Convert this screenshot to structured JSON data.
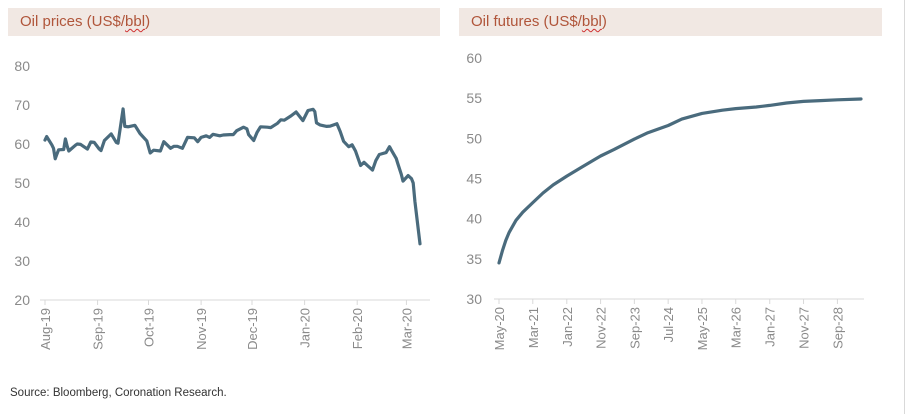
{
  "left_panel": {
    "title_prefix": "Oil prices (US$/",
    "title_unit": "bbl",
    "title_suffix": ")"
  },
  "right_panel": {
    "title_prefix": "Oil futures (US$/",
    "title_unit": "bbl",
    "title_suffix": ")"
  },
  "source": "Source: Bloomberg, Coronation Research.",
  "colors": {
    "line": "#4a6b7d",
    "header_bg": "#f1e8e3",
    "title": "#b0553a",
    "axis": "#d9d9d9",
    "tick": "#8a8a8a"
  },
  "chart_data": [
    {
      "type": "line",
      "title": "Oil prices (US$/bbl)",
      "ylim": [
        20,
        80
      ],
      "yticks": [
        20,
        30,
        40,
        50,
        60,
        70,
        80
      ],
      "x_tick_labels": [
        "Aug-19",
        "Sep-19",
        "Oct-19",
        "Nov-19",
        "Dec-19",
        "Jan-20",
        "Feb-20",
        "Mar-20"
      ],
      "x_tick_dates": [
        "2019-08-01",
        "2019-09-01",
        "2019-10-01",
        "2019-11-01",
        "2019-12-01",
        "2020-01-01",
        "2020-02-01",
        "2020-03-01"
      ],
      "x_range": [
        "2019-08-01",
        "2020-03-09"
      ],
      "grid": false,
      "series": [
        {
          "points": [
            [
              "2019-08-01",
              61.0
            ],
            [
              "2019-08-02",
              61.9
            ],
            [
              "2019-08-05",
              59.8
            ],
            [
              "2019-08-06",
              58.9
            ],
            [
              "2019-08-07",
              56.2
            ],
            [
              "2019-08-08",
              57.4
            ],
            [
              "2019-08-09",
              58.5
            ],
            [
              "2019-08-12",
              58.6
            ],
            [
              "2019-08-13",
              61.3
            ],
            [
              "2019-08-14",
              59.5
            ],
            [
              "2019-08-15",
              58.2
            ],
            [
              "2019-08-16",
              58.6
            ],
            [
              "2019-08-19",
              59.7
            ],
            [
              "2019-08-20",
              60.0
            ],
            [
              "2019-08-22",
              59.9
            ],
            [
              "2019-08-26",
              58.7
            ],
            [
              "2019-08-28",
              60.5
            ],
            [
              "2019-08-30",
              60.4
            ],
            [
              "2019-09-02",
              58.7
            ],
            [
              "2019-09-03",
              58.3
            ],
            [
              "2019-09-05",
              60.9
            ],
            [
              "2019-09-09",
              62.6
            ],
            [
              "2019-09-12",
              60.4
            ],
            [
              "2019-09-13",
              60.2
            ],
            [
              "2019-09-16",
              69.0
            ],
            [
              "2019-09-17",
              64.5
            ],
            [
              "2019-09-19",
              64.4
            ],
            [
              "2019-09-23",
              64.8
            ],
            [
              "2019-09-26",
              62.7
            ],
            [
              "2019-09-30",
              60.8
            ],
            [
              "2019-10-02",
              57.7
            ],
            [
              "2019-10-04",
              58.4
            ],
            [
              "2019-10-08",
              58.2
            ],
            [
              "2019-10-10",
              60.6
            ],
            [
              "2019-10-14",
              58.9
            ],
            [
              "2019-10-16",
              59.4
            ],
            [
              "2019-10-18",
              59.4
            ],
            [
              "2019-10-21",
              58.9
            ],
            [
              "2019-10-24",
              61.7
            ],
            [
              "2019-10-28",
              61.6
            ],
            [
              "2019-10-30",
              60.6
            ],
            [
              "2019-11-01",
              61.7
            ],
            [
              "2019-11-04",
              62.1
            ],
            [
              "2019-11-06",
              61.7
            ],
            [
              "2019-11-08",
              62.5
            ],
            [
              "2019-11-12",
              62.1
            ],
            [
              "2019-11-14",
              62.3
            ],
            [
              "2019-11-18",
              62.4
            ],
            [
              "2019-11-20",
              62.4
            ],
            [
              "2019-11-22",
              63.4
            ],
            [
              "2019-11-26",
              64.3
            ],
            [
              "2019-11-28",
              63.9
            ],
            [
              "2019-11-29",
              62.4
            ],
            [
              "2019-12-02",
              60.9
            ],
            [
              "2019-12-04",
              63.0
            ],
            [
              "2019-12-06",
              64.4
            ],
            [
              "2019-12-10",
              64.3
            ],
            [
              "2019-12-12",
              64.2
            ],
            [
              "2019-12-16",
              65.3
            ],
            [
              "2019-12-18",
              66.2
            ],
            [
              "2019-12-20",
              66.1
            ],
            [
              "2019-12-24",
              67.2
            ],
            [
              "2019-12-27",
              68.2
            ],
            [
              "2019-12-31",
              66.0
            ],
            [
              "2020-01-03",
              68.6
            ],
            [
              "2020-01-06",
              68.9
            ],
            [
              "2020-01-07",
              68.3
            ],
            [
              "2020-01-08",
              65.4
            ],
            [
              "2020-01-10",
              64.9
            ],
            [
              "2020-01-14",
              64.5
            ],
            [
              "2020-01-16",
              64.6
            ],
            [
              "2020-01-20",
              65.2
            ],
            [
              "2020-01-22",
              63.2
            ],
            [
              "2020-01-24",
              60.7
            ],
            [
              "2020-01-27",
              59.3
            ],
            [
              "2020-01-29",
              59.8
            ],
            [
              "2020-01-31",
              58.2
            ],
            [
              "2020-02-03",
              54.5
            ],
            [
              "2020-02-05",
              55.3
            ],
            [
              "2020-02-07",
              54.5
            ],
            [
              "2020-02-10",
              53.3
            ],
            [
              "2020-02-12",
              55.8
            ],
            [
              "2020-02-14",
              57.3
            ],
            [
              "2020-02-18",
              57.8
            ],
            [
              "2020-02-20",
              59.3
            ],
            [
              "2020-02-21",
              58.5
            ],
            [
              "2020-02-24",
              56.3
            ],
            [
              "2020-02-25",
              54.9
            ],
            [
              "2020-02-27",
              52.2
            ],
            [
              "2020-02-28",
              50.5
            ],
            [
              "2020-03-02",
              51.9
            ],
            [
              "2020-03-04",
              51.1
            ],
            [
              "2020-03-05",
              50.0
            ],
            [
              "2020-03-06",
              45.3
            ],
            [
              "2020-03-09",
              34.4
            ]
          ]
        }
      ]
    },
    {
      "type": "line",
      "title": "Oil futures (US$/bbl)",
      "ylim": [
        30,
        60
      ],
      "yticks": [
        30,
        35,
        40,
        45,
        50,
        55,
        60
      ],
      "x_tick_labels": [
        "May-20",
        "Mar-21",
        "Jan-22",
        "Nov-22",
        "Sep-23",
        "Jul-24",
        "May-25",
        "Mar-26",
        "Jan-27",
        "Nov-27",
        "Sep-28"
      ],
      "x_tick_dates": [
        "2020-05-01",
        "2021-03-01",
        "2022-01-01",
        "2022-11-01",
        "2023-09-01",
        "2024-07-01",
        "2025-05-01",
        "2026-03-01",
        "2027-01-01",
        "2027-11-01",
        "2028-09-01"
      ],
      "x_range": [
        "2020-05-01",
        "2029-04-01"
      ],
      "grid": false,
      "series": [
        {
          "points": [
            [
              "2020-05-01",
              34.5
            ],
            [
              "2020-06-01",
              36.0
            ],
            [
              "2020-07-01",
              37.3
            ],
            [
              "2020-08-01",
              38.3
            ],
            [
              "2020-10-01",
              39.8
            ],
            [
              "2020-12-01",
              40.8
            ],
            [
              "2021-03-01",
              42.0
            ],
            [
              "2021-06-01",
              43.2
            ],
            [
              "2021-09-01",
              44.2
            ],
            [
              "2022-01-01",
              45.3
            ],
            [
              "2022-05-01",
              46.3
            ],
            [
              "2022-09-01",
              47.3
            ],
            [
              "2022-11-01",
              47.8
            ],
            [
              "2023-03-01",
              48.6
            ],
            [
              "2023-09-01",
              49.9
            ],
            [
              "2024-01-01",
              50.7
            ],
            [
              "2024-07-01",
              51.6
            ],
            [
              "2024-11-01",
              52.4
            ],
            [
              "2025-05-01",
              53.1
            ],
            [
              "2025-11-01",
              53.5
            ],
            [
              "2026-03-01",
              53.7
            ],
            [
              "2026-09-01",
              53.9
            ],
            [
              "2027-01-01",
              54.1
            ],
            [
              "2027-06-01",
              54.4
            ],
            [
              "2027-11-01",
              54.6
            ],
            [
              "2028-04-01",
              54.7
            ],
            [
              "2028-09-01",
              54.8
            ],
            [
              "2029-04-01",
              54.9
            ]
          ]
        }
      ]
    }
  ]
}
